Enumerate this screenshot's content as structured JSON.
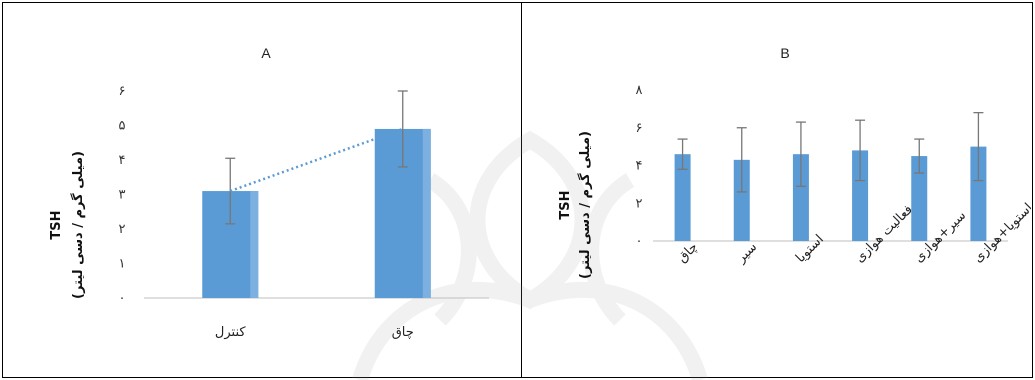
{
  "chart_data": [
    {
      "type": "bar",
      "title": "A",
      "ylabel": "(میلی گرم / دسی لیتر)",
      "ylabel_top": "TSH",
      "categories": [
        "کنترل",
        "چاق"
      ],
      "values": [
        3.1,
        4.9
      ],
      "errors": [
        0.95,
        1.1
      ],
      "ylim": [
        0,
        6
      ],
      "yticks": [
        "۰",
        "۱",
        "۲",
        "۳",
        "۴",
        "۵",
        "۶"
      ],
      "trendline": true,
      "grid": false,
      "colors": {
        "bar": "#5b9bd5",
        "bar_light": "#7cb0e0",
        "error": "#777777",
        "trend": "#5b9bd5"
      }
    },
    {
      "type": "bar",
      "title": "B",
      "ylabel": "(میلی گرم / دسی لیتر)",
      "ylabel_top": "TSH",
      "categories": [
        "چاق",
        "سیر",
        "استویا",
        "فعالیت هوازی",
        "سیر+هوازی",
        "استویا+هوازی"
      ],
      "values": [
        4.6,
        4.3,
        4.6,
        4.8,
        4.5,
        5.0
      ],
      "errors": [
        0.8,
        1.7,
        1.7,
        1.6,
        0.9,
        1.8
      ],
      "ylim": [
        0,
        8
      ],
      "yticks": [
        "۰",
        "۲",
        "۴",
        "۶",
        "۸"
      ],
      "grid": false,
      "colors": {
        "bar": "#5b9bd5",
        "error": "#777777"
      }
    }
  ],
  "colors": {
    "border": "#000000",
    "background": "#ffffff",
    "watermark": "#9a9a9a"
  }
}
